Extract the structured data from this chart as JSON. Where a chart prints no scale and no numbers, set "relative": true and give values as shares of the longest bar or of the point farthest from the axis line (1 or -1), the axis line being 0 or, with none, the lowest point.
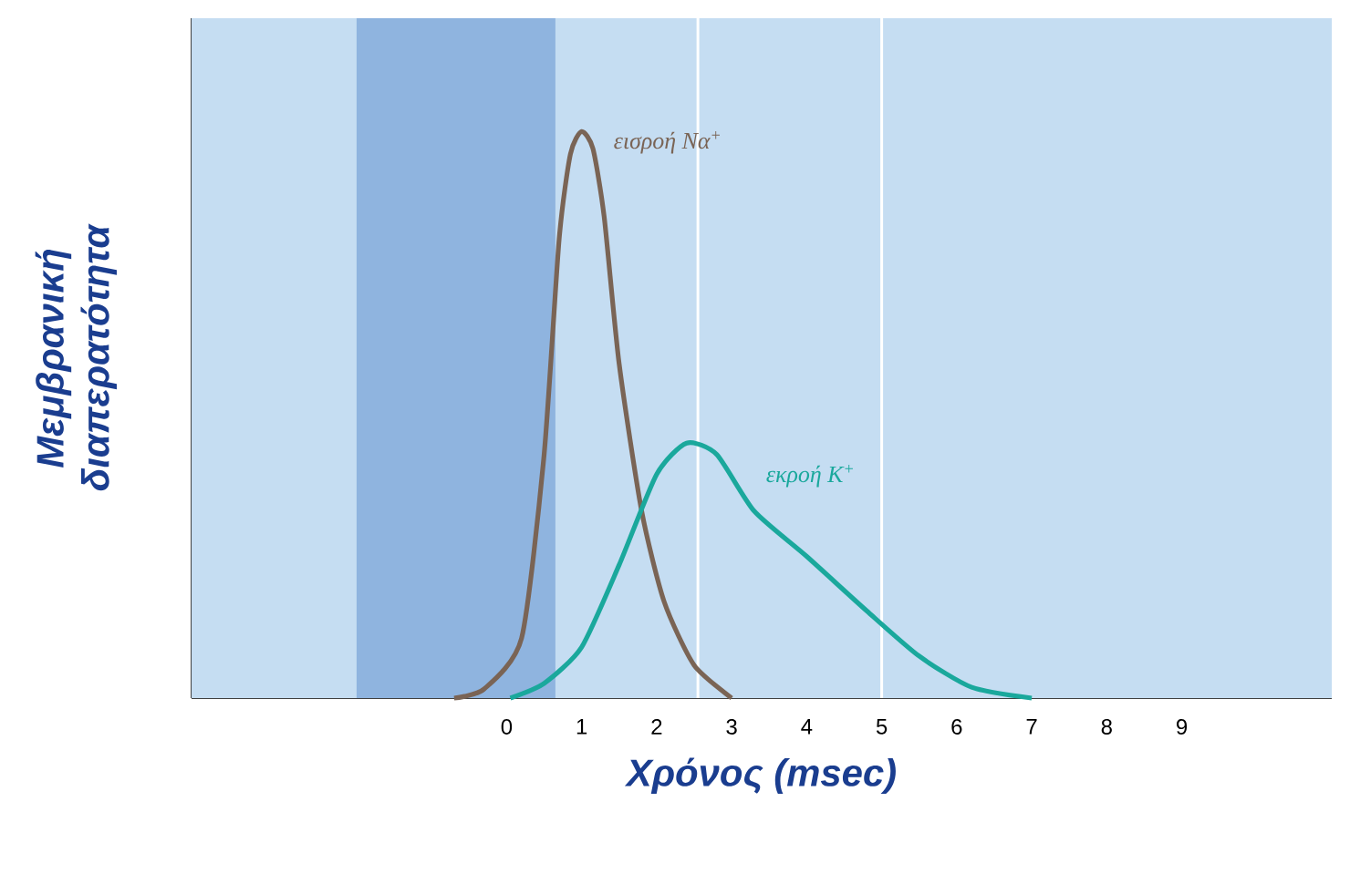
{
  "chart_data": {
    "type": "line",
    "relative": true,
    "ylabel": "Μεμβρανική διαπερατότητα",
    "xlabel": "Χρόνος (msec)",
    "xlim": [
      -4.2,
      11
    ],
    "xticks": [
      0,
      1,
      2,
      3,
      4,
      5,
      6,
      7,
      8,
      9
    ],
    "tick_labels": "x",
    "marker": "none",
    "line_style": "solid",
    "bands": [
      {
        "axis": "x",
        "from": -2.0,
        "to": 0.65,
        "color": "#8fb4df"
      }
    ],
    "ref_lines": [
      {
        "axis": "x",
        "value": 2.55,
        "color": "#ffffff"
      },
      {
        "axis": "x",
        "value": 5.0,
        "color": "#ffffff"
      }
    ],
    "series": [
      {
        "name": "εισροή Να$^{+}$",
        "color": "#7a6455",
        "x": [
          -0.7,
          -0.3,
          0.2,
          0.5,
          0.7,
          0.85,
          1.0,
          1.15,
          1.3,
          1.5,
          1.8,
          2.1,
          2.5,
          3.0
        ],
        "values": [
          0,
          0.016,
          0.106,
          0.43,
          0.81,
          0.96,
          1,
          0.97,
          0.85,
          0.59,
          0.33,
          0.17,
          0.058,
          0
        ]
      },
      {
        "name": "εκροή Κ$^{+}$",
        "color": "#1aa89c",
        "x": [
          0.05,
          0.5,
          1.0,
          1.5,
          2.0,
          2.4,
          2.8,
          3.3,
          4.0,
          4.8,
          5.5,
          6.2,
          7.0
        ],
        "values": [
          0,
          0.026,
          0.09,
          0.235,
          0.395,
          0.45,
          0.43,
          0.33,
          0.25,
          0.154,
          0.074,
          0.019,
          0
        ]
      }
    ]
  }
}
